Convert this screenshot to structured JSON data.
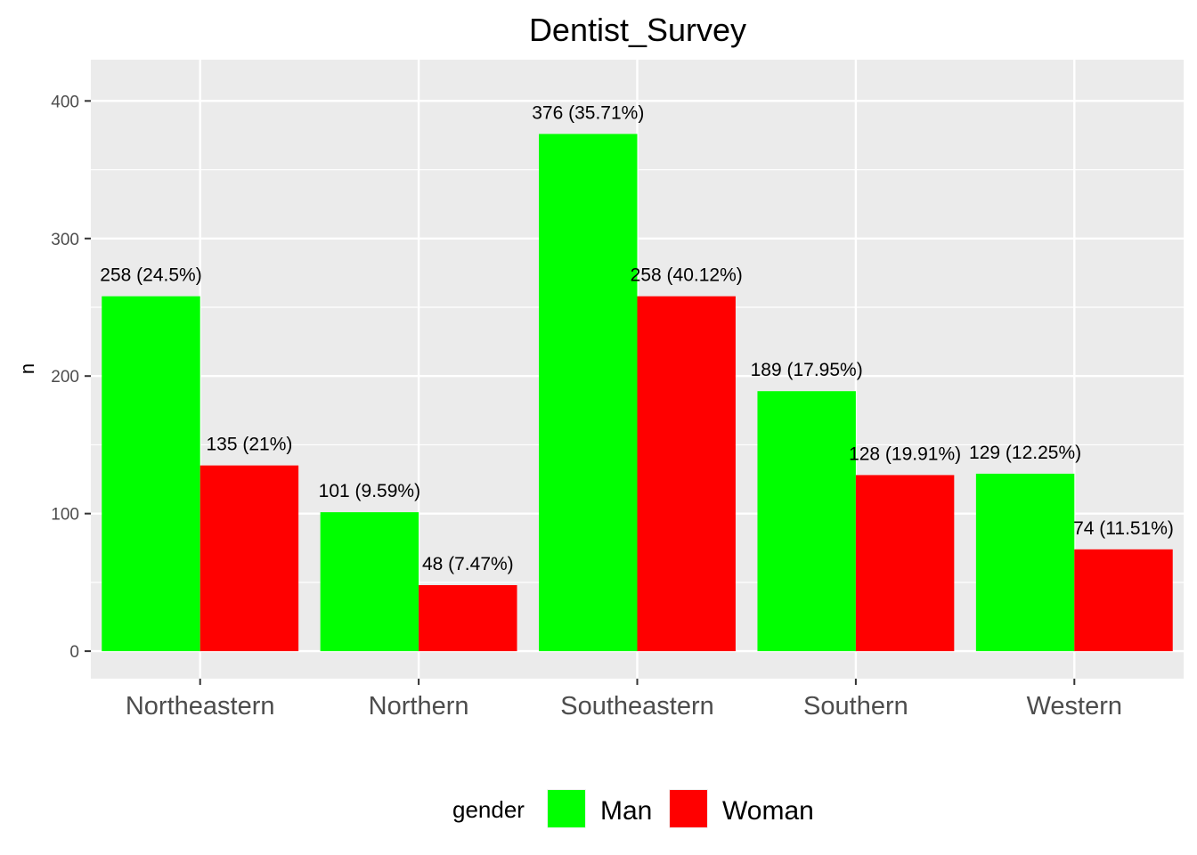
{
  "chart_data": {
    "type": "bar",
    "title": "Dentist_Survey",
    "xlabel": "",
    "ylabel": "n",
    "ylim": [
      -20,
      430
    ],
    "yticks": [
      0,
      100,
      200,
      300,
      400
    ],
    "categories": [
      "Northeastern",
      "Northern",
      "Southeastern",
      "Southern",
      "Western"
    ],
    "series": [
      {
        "name": "Man",
        "color": "#00ff00",
        "values": [
          258,
          101,
          376,
          189,
          129
        ],
        "labels": [
          "258 (24.5%)",
          "101 (9.59%)",
          "376 (35.71%)",
          "189 (17.95%)",
          "129 (12.25%)"
        ]
      },
      {
        "name": "Woman",
        "color": "#ff0000",
        "values": [
          135,
          48,
          258,
          128,
          74
        ],
        "labels": [
          "135 (21%)",
          "48 (7.47%)",
          "258 (40.12%)",
          "128 (19.91%)",
          "74 (11.51%)"
        ]
      }
    ],
    "legend": {
      "title": "gender",
      "position": "bottom"
    },
    "grid": true,
    "panel_background": "#ebebeb"
  }
}
